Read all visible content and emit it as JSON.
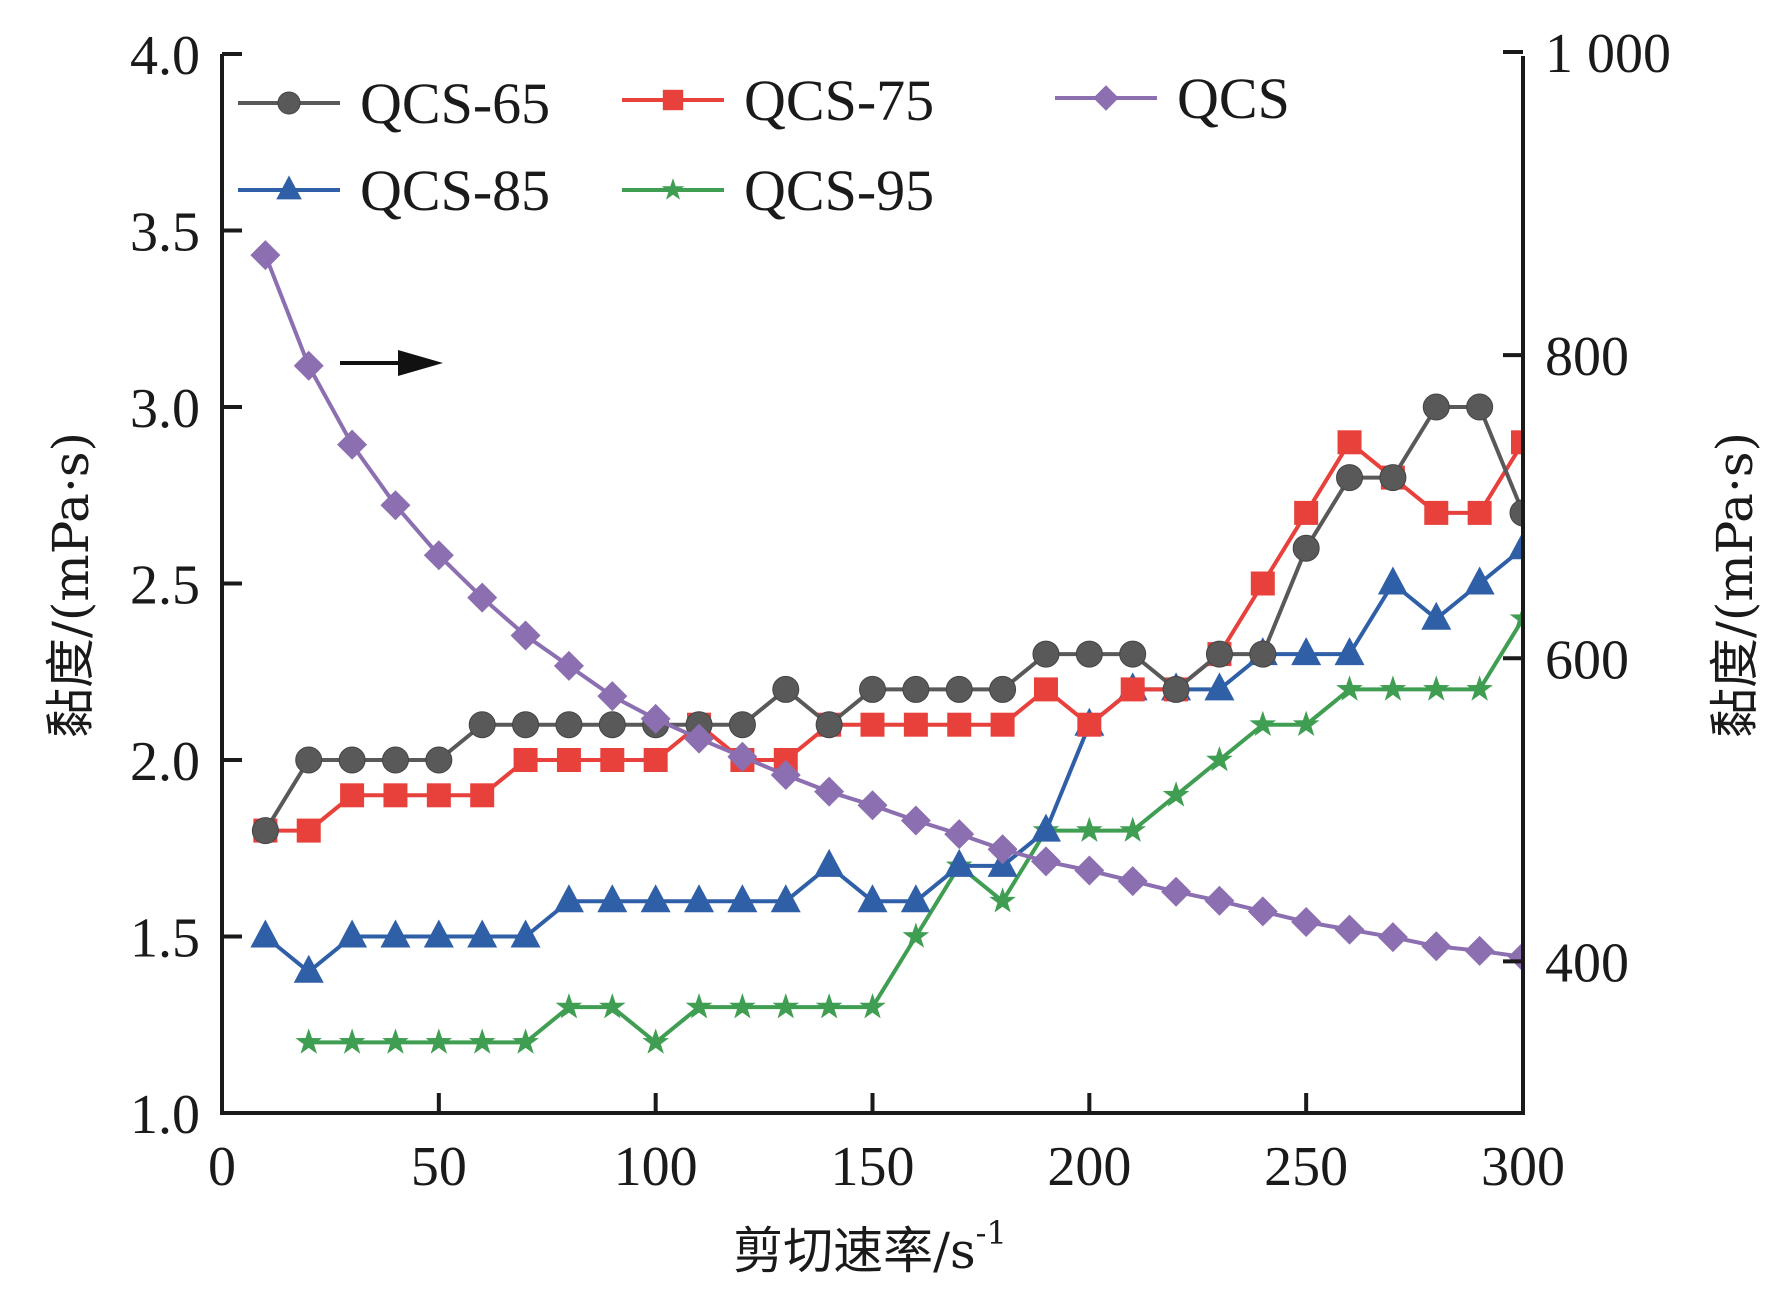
{
  "chart_data": {
    "type": "line",
    "title": "",
    "xlabel": "剪切速率/s",
    "xlabel_superscript": "-1",
    "ylabel_left": "黏度/(mPa·s)",
    "ylabel_right": "黏度/(mPa·s)",
    "xlim": [
      0,
      300
    ],
    "ylim_left": [
      1.0,
      4.0
    ],
    "ylim_right": [
      300,
      1000
    ],
    "x_ticks": [
      "0",
      "50",
      "100",
      "150",
      "200",
      "250",
      "300"
    ],
    "x_tick_values": [
      0,
      50,
      100,
      150,
      200,
      250,
      300
    ],
    "y_left_ticks": [
      "1.0",
      "1.5",
      "2.0",
      "2.5",
      "3.0",
      "3.5",
      "4.0"
    ],
    "y_left_tick_values": [
      1.0,
      1.5,
      2.0,
      2.5,
      3.0,
      3.5,
      4.0
    ],
    "y_right_ticks": [
      "400",
      "600",
      "800",
      "1 000"
    ],
    "y_right_tick_values": [
      400,
      600,
      800,
      1000
    ],
    "grid": false,
    "legend_position": "top-left",
    "annotation": {
      "type": "arrow",
      "direction": "right",
      "meaning": "QCS series uses right axis"
    },
    "x": [
      10,
      20,
      30,
      40,
      50,
      60,
      70,
      80,
      90,
      100,
      110,
      120,
      130,
      140,
      150,
      160,
      170,
      180,
      190,
      200,
      210,
      220,
      230,
      240,
      250,
      260,
      270,
      280,
      290,
      300
    ],
    "series": [
      {
        "name": "QCS-65",
        "axis": "left",
        "color": "#595959",
        "marker": "circle",
        "values": [
          1.8,
          2.0,
          2.0,
          2.0,
          2.0,
          2.1,
          2.1,
          2.1,
          2.1,
          2.1,
          2.1,
          2.1,
          2.2,
          2.1,
          2.2,
          2.2,
          2.2,
          2.2,
          2.3,
          2.3,
          2.3,
          2.2,
          2.3,
          2.3,
          2.6,
          2.8,
          2.8,
          3.0,
          3.0,
          2.7
        ]
      },
      {
        "name": "QCS-75",
        "axis": "left",
        "color": "#e8413c",
        "marker": "square",
        "values": [
          1.8,
          1.8,
          1.9,
          1.9,
          1.9,
          1.9,
          2.0,
          2.0,
          2.0,
          2.0,
          2.1,
          2.0,
          2.0,
          2.1,
          2.1,
          2.1,
          2.1,
          2.1,
          2.2,
          2.1,
          2.2,
          2.2,
          2.3,
          2.5,
          2.7,
          2.9,
          2.8,
          2.7,
          2.7,
          2.9
        ]
      },
      {
        "name": "QCS",
        "axis": "right",
        "color": "#8c6fb0",
        "marker": "diamond",
        "values": [
          866,
          793,
          741,
          701,
          668,
          640,
          615,
          595,
          575,
          560,
          547,
          535,
          523,
          512,
          503,
          493,
          484,
          474,
          466,
          460,
          453,
          446,
          440,
          433,
          426,
          421,
          416,
          410,
          407,
          403
        ]
      },
      {
        "name": "QCS-85",
        "axis": "left",
        "color": "#2f5fa7",
        "marker": "triangle",
        "values": [
          1.5,
          1.4,
          1.5,
          1.5,
          1.5,
          1.5,
          1.5,
          1.6,
          1.6,
          1.6,
          1.6,
          1.6,
          1.6,
          1.7,
          1.6,
          1.6,
          1.7,
          1.7,
          1.8,
          2.1,
          2.2,
          2.2,
          2.2,
          2.3,
          2.3,
          2.3,
          2.5,
          2.4,
          2.5,
          2.6
        ]
      },
      {
        "name": "QCS-95",
        "axis": "left",
        "color": "#3f9e52",
        "marker": "star",
        "values": [
          null,
          1.2,
          1.2,
          1.2,
          1.2,
          1.2,
          1.2,
          1.3,
          1.3,
          1.2,
          1.3,
          1.3,
          1.3,
          1.3,
          1.3,
          1.5,
          1.7,
          1.6,
          1.8,
          1.8,
          1.8,
          1.9,
          2.0,
          2.1,
          2.1,
          2.2,
          2.2,
          2.2,
          2.2,
          2.4
        ]
      }
    ],
    "legend": [
      {
        "label": "QCS-65",
        "series": 0
      },
      {
        "label": "QCS-75",
        "series": 1
      },
      {
        "label": "QCS",
        "series": 2
      },
      {
        "label": "QCS-85",
        "series": 3
      },
      {
        "label": "QCS-95",
        "series": 4
      }
    ]
  }
}
